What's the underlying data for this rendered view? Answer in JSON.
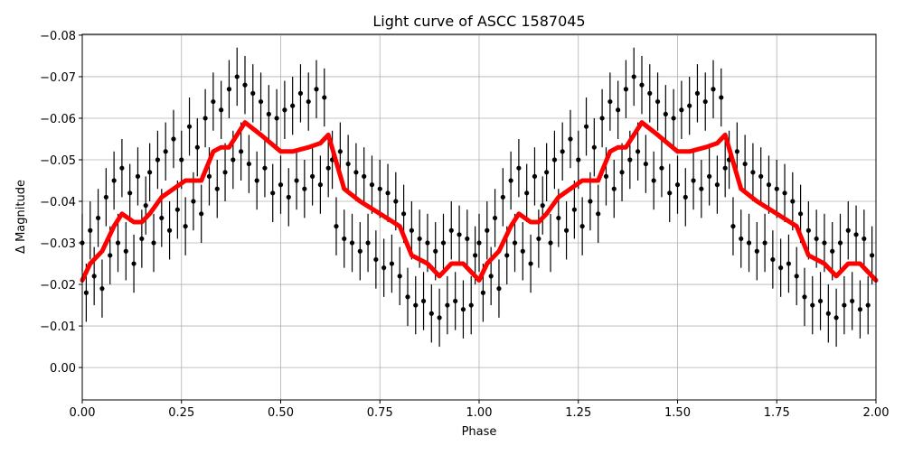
{
  "chart_data": {
    "type": "scatter",
    "title": "Light curve of ASCC 1587045",
    "xlabel": "Phase",
    "ylabel": "Δ Magnitude",
    "xlim": [
      0,
      2
    ],
    "ylim": [
      0.0078,
      -0.0802
    ],
    "y_inverted": true,
    "grid": true,
    "xticks": [
      "0.00",
      "0.25",
      "0.50",
      "0.75",
      "1.00",
      "1.25",
      "1.50",
      "1.75",
      "2.00"
    ],
    "yticks": [
      "−0.08",
      "−0.07",
      "−0.06",
      "−0.05",
      "−0.04",
      "−0.03",
      "−0.02",
      "−0.01",
      "0.00"
    ],
    "ytick_values": [
      -0.08,
      -0.07,
      -0.06,
      -0.05,
      -0.04,
      -0.03,
      -0.02,
      -0.01,
      0.0
    ],
    "xtick_values": [
      0,
      0.25,
      0.5,
      0.75,
      1,
      1.25,
      1.5,
      1.75,
      2
    ],
    "phase_repeats": 2,
    "series": [
      {
        "kind": "errorbar-points",
        "color": "#000000",
        "yerr": 0.007,
        "x": [
          0.0,
          0.01,
          0.02,
          0.03,
          0.04,
          0.05,
          0.06,
          0.07,
          0.08,
          0.09,
          0.1,
          0.11,
          0.12,
          0.13,
          0.14,
          0.15,
          0.16,
          0.17,
          0.18,
          0.19,
          0.2,
          0.21,
          0.22,
          0.23,
          0.24,
          0.25,
          0.26,
          0.27,
          0.28,
          0.29,
          0.3,
          0.31,
          0.32,
          0.33,
          0.34,
          0.35,
          0.36,
          0.37,
          0.38,
          0.39,
          0.4,
          0.41,
          0.42,
          0.43,
          0.44,
          0.45,
          0.46,
          0.47,
          0.48,
          0.49,
          0.5,
          0.51,
          0.52,
          0.53,
          0.54,
          0.55,
          0.56,
          0.57,
          0.58,
          0.59,
          0.6,
          0.61,
          0.62,
          0.63,
          0.64,
          0.65,
          0.66,
          0.67,
          0.68,
          0.69,
          0.7,
          0.71,
          0.72,
          0.73,
          0.74,
          0.75,
          0.76,
          0.77,
          0.78,
          0.79,
          0.8,
          0.81,
          0.82,
          0.83,
          0.84,
          0.85,
          0.86,
          0.87,
          0.88,
          0.89,
          0.9,
          0.91,
          0.92,
          0.93,
          0.94,
          0.95,
          0.96,
          0.97,
          0.98,
          0.99
        ],
        "y": [
          -0.03,
          -0.018,
          -0.033,
          -0.022,
          -0.036,
          -0.019,
          -0.041,
          -0.027,
          -0.045,
          -0.03,
          -0.048,
          -0.028,
          -0.042,
          -0.025,
          -0.046,
          -0.031,
          -0.039,
          -0.047,
          -0.03,
          -0.05,
          -0.036,
          -0.052,
          -0.033,
          -0.055,
          -0.038,
          -0.05,
          -0.034,
          -0.058,
          -0.04,
          -0.053,
          -0.037,
          -0.06,
          -0.046,
          -0.064,
          -0.043,
          -0.062,
          -0.047,
          -0.067,
          -0.05,
          -0.07,
          -0.052,
          -0.068,
          -0.049,
          -0.066,
          -0.045,
          -0.064,
          -0.048,
          -0.061,
          -0.042,
          -0.06,
          -0.044,
          -0.062,
          -0.041,
          -0.063,
          -0.045,
          -0.066,
          -0.043,
          -0.064,
          -0.046,
          -0.067,
          -0.044,
          -0.065,
          -0.048,
          -0.05,
          -0.034,
          -0.052,
          -0.031,
          -0.049,
          -0.03,
          -0.047,
          -0.028,
          -0.046,
          -0.03,
          -0.044,
          -0.026,
          -0.043,
          -0.024,
          -0.042,
          -0.025,
          -0.04,
          -0.022,
          -0.037,
          -0.017,
          -0.033,
          -0.015,
          -0.031,
          -0.016,
          -0.03,
          -0.013,
          -0.028,
          -0.012,
          -0.03,
          -0.015,
          -0.033,
          -0.016,
          -0.032,
          -0.014,
          -0.031,
          -0.015,
          -0.027
        ]
      },
      {
        "kind": "line",
        "color": "#ff0000",
        "x": [
          0.0,
          0.02,
          0.05,
          0.08,
          0.1,
          0.13,
          0.15,
          0.17,
          0.2,
          0.23,
          0.26,
          0.3,
          0.33,
          0.35,
          0.37,
          0.41,
          0.45,
          0.5,
          0.53,
          0.57,
          0.6,
          0.62,
          0.66,
          0.7,
          0.75,
          0.8,
          0.83,
          0.87,
          0.9,
          0.93,
          0.96,
          1.0
        ],
        "y": [
          -0.021,
          -0.025,
          -0.028,
          -0.034,
          -0.037,
          -0.035,
          -0.035,
          -0.037,
          -0.041,
          -0.043,
          -0.045,
          -0.045,
          -0.052,
          -0.053,
          -0.053,
          -0.059,
          -0.056,
          -0.052,
          -0.052,
          -0.053,
          -0.054,
          -0.056,
          -0.043,
          -0.04,
          -0.037,
          -0.034,
          -0.027,
          -0.025,
          -0.022,
          -0.025,
          -0.025,
          -0.021
        ]
      }
    ]
  }
}
